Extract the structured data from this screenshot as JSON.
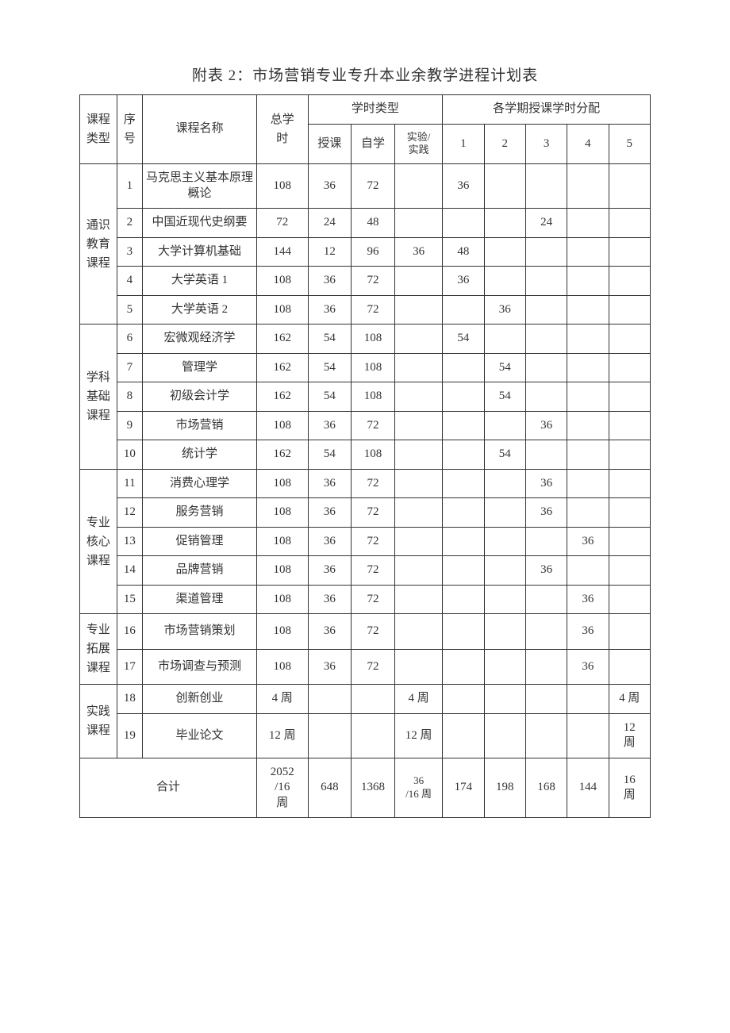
{
  "title": "附表 2：市场营销专业专升本业余教学进程计划表",
  "headers": {
    "course_type": "课程\n类型",
    "seq": "序\n号",
    "course_name": "课程名称",
    "total_hours": "总学\n时",
    "hour_type": "学时类型",
    "lecture": "授课",
    "self_study": "自学",
    "practice": "实验/\n实践",
    "sem_dist": "各学期授课学时分配",
    "s1": "1",
    "s2": "2",
    "s3": "3",
    "s4": "4",
    "s5": "5"
  },
  "categories": {
    "general": "通识\n教育\n课程",
    "discipline": "学科\n基础\n课程",
    "core": "专业\n核心\n课程",
    "extension": "专业\n拓展\n课程",
    "practice": "实践\n课程"
  },
  "rows": [
    {
      "seq": "1",
      "name": "马克思主义基本原理概论",
      "total": "108",
      "lec": "36",
      "self": "72",
      "prac": "",
      "s1": "36",
      "s2": "",
      "s3": "",
      "s4": "",
      "s5": ""
    },
    {
      "seq": "2",
      "name": "中国近现代史纲要",
      "total": "72",
      "lec": "24",
      "self": "48",
      "prac": "",
      "s1": "",
      "s2": "",
      "s3": "24",
      "s4": "",
      "s5": ""
    },
    {
      "seq": "3",
      "name": "大学计算机基础",
      "total": "144",
      "lec": "12",
      "self": "96",
      "prac": "36",
      "s1": "48",
      "s2": "",
      "s3": "",
      "s4": "",
      "s5": ""
    },
    {
      "seq": "4",
      "name": "大学英语 1",
      "total": "108",
      "lec": "36",
      "self": "72",
      "prac": "",
      "s1": "36",
      "s2": "",
      "s3": "",
      "s4": "",
      "s5": ""
    },
    {
      "seq": "5",
      "name": "大学英语 2",
      "total": "108",
      "lec": "36",
      "self": "72",
      "prac": "",
      "s1": "",
      "s2": "36",
      "s3": "",
      "s4": "",
      "s5": ""
    },
    {
      "seq": "6",
      "name": "宏微观经济学",
      "total": "162",
      "lec": "54",
      "self": "108",
      "prac": "",
      "s1": "54",
      "s2": "",
      "s3": "",
      "s4": "",
      "s5": ""
    },
    {
      "seq": "7",
      "name": "管理学",
      "total": "162",
      "lec": "54",
      "self": "108",
      "prac": "",
      "s1": "",
      "s2": "54",
      "s3": "",
      "s4": "",
      "s5": ""
    },
    {
      "seq": "8",
      "name": "初级会计学",
      "total": "162",
      "lec": "54",
      "self": "108",
      "prac": "",
      "s1": "",
      "s2": "54",
      "s3": "",
      "s4": "",
      "s5": ""
    },
    {
      "seq": "9",
      "name": "市场营销",
      "total": "108",
      "lec": "36",
      "self": "72",
      "prac": "",
      "s1": "",
      "s2": "",
      "s3": "36",
      "s4": "",
      "s5": ""
    },
    {
      "seq": "10",
      "name": "统计学",
      "total": "162",
      "lec": "54",
      "self": "108",
      "prac": "",
      "s1": "",
      "s2": "54",
      "s3": "",
      "s4": "",
      "s5": ""
    },
    {
      "seq": "11",
      "name": "消费心理学",
      "total": "108",
      "lec": "36",
      "self": "72",
      "prac": "",
      "s1": "",
      "s2": "",
      "s3": "36",
      "s4": "",
      "s5": ""
    },
    {
      "seq": "12",
      "name": "服务营销",
      "total": "108",
      "lec": "36",
      "self": "72",
      "prac": "",
      "s1": "",
      "s2": "",
      "s3": "36",
      "s4": "",
      "s5": ""
    },
    {
      "seq": "13",
      "name": "促销管理",
      "total": "108",
      "lec": "36",
      "self": "72",
      "prac": "",
      "s1": "",
      "s2": "",
      "s3": "",
      "s4": "36",
      "s5": ""
    },
    {
      "seq": "14",
      "name": "品牌营销",
      "total": "108",
      "lec": "36",
      "self": "72",
      "prac": "",
      "s1": "",
      "s2": "",
      "s3": "36",
      "s4": "",
      "s5": ""
    },
    {
      "seq": "15",
      "name": "渠道管理",
      "total": "108",
      "lec": "36",
      "self": "72",
      "prac": "",
      "s1": "",
      "s2": "",
      "s3": "",
      "s4": "36",
      "s5": ""
    },
    {
      "seq": "16",
      "name": "市场营销策划",
      "total": "108",
      "lec": "36",
      "self": "72",
      "prac": "",
      "s1": "",
      "s2": "",
      "s3": "",
      "s4": "36",
      "s5": ""
    },
    {
      "seq": "17",
      "name": "市场调查与预测",
      "total": "108",
      "lec": "36",
      "self": "72",
      "prac": "",
      "s1": "",
      "s2": "",
      "s3": "",
      "s4": "36",
      "s5": ""
    },
    {
      "seq": "18",
      "name": "创新创业",
      "total": "4 周",
      "lec": "",
      "self": "",
      "prac": "4 周",
      "s1": "",
      "s2": "",
      "s3": "",
      "s4": "",
      "s5": "4 周"
    },
    {
      "seq": "19",
      "name": "毕业论文",
      "total": "12 周",
      "lec": "",
      "self": "",
      "prac": "12 周",
      "s1": "",
      "s2": "",
      "s3": "",
      "s4": "",
      "s5": "12\n周"
    }
  ],
  "total_row": {
    "label": "合计",
    "total": "2052\n/16\n周",
    "lec": "648",
    "self": "1368",
    "prac": "36\n/16 周",
    "s1": "174",
    "s2": "198",
    "s3": "168",
    "s4": "144",
    "s5": "16\n周"
  }
}
